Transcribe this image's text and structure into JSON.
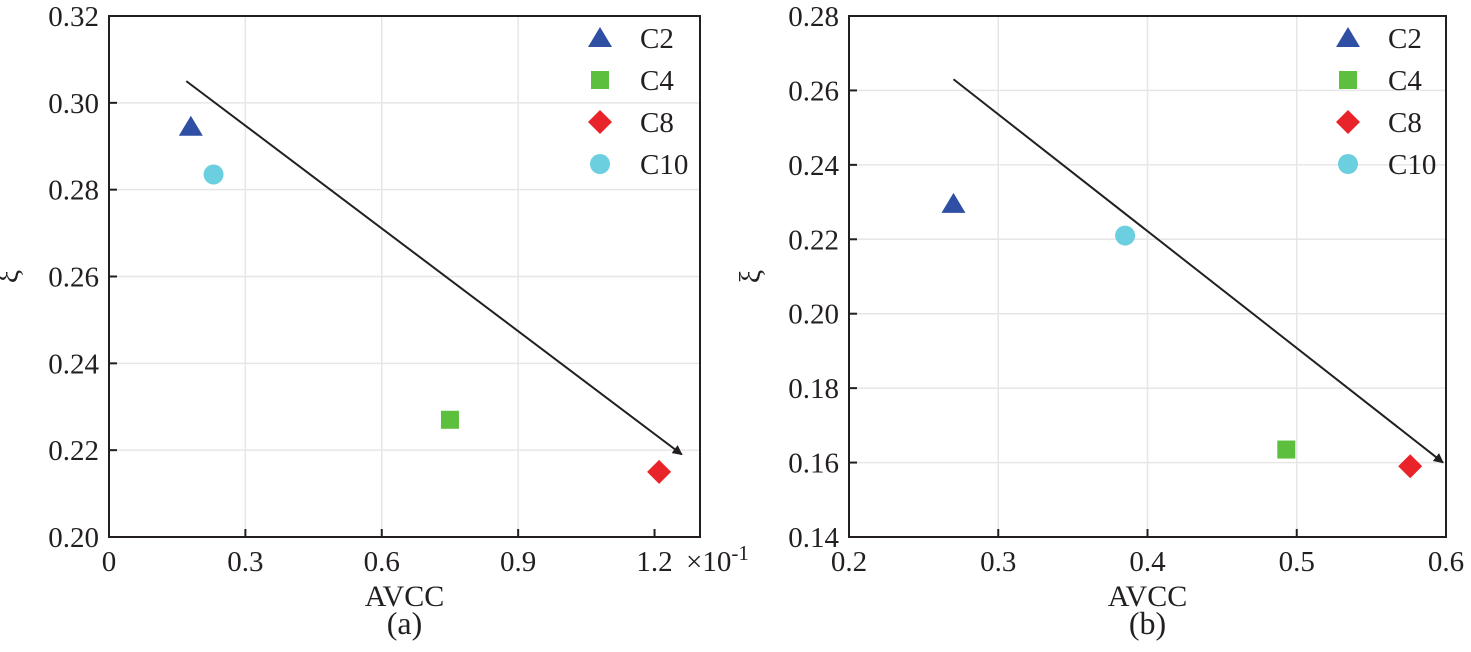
{
  "chart_data": [
    {
      "type": "scatter",
      "panel_label": "(a)",
      "xlabel": "AVCC",
      "ylabel": "ξ",
      "x_exponent_label": "×10",
      "x_exponent_power": "-1",
      "xlim": [
        0,
        1.3
      ],
      "ylim": [
        0.2,
        0.32
      ],
      "xticks": [
        0,
        0.3,
        0.6,
        0.9,
        1.2
      ],
      "xtick_labels": [
        "0",
        "0.3",
        "0.6",
        "0.9",
        "1.2"
      ],
      "yticks": [
        0.2,
        0.22,
        0.24,
        0.26,
        0.28,
        0.3,
        0.32
      ],
      "ytick_labels": [
        "0.20",
        "0.22",
        "0.24",
        "0.26",
        "0.28",
        "0.30",
        "0.32"
      ],
      "grid": true,
      "legend_position": "top-right",
      "series": [
        {
          "name": "C2",
          "marker": "triangle",
          "color": "#2e4fa3",
          "x": 0.18,
          "y": 0.2945
        },
        {
          "name": "C4",
          "marker": "square",
          "color": "#5cbf3e",
          "x": 0.75,
          "y": 0.227
        },
        {
          "name": "C8",
          "marker": "diamond",
          "color": "#e8242a",
          "x": 1.21,
          "y": 0.215
        },
        {
          "name": "C10",
          "marker": "circle",
          "color": "#6ccfdf",
          "x": 0.23,
          "y": 0.2835
        }
      ],
      "trend_arrow": {
        "from": [
          0.17,
          0.305
        ],
        "to": [
          1.26,
          0.219
        ],
        "color": "#231f20"
      }
    },
    {
      "type": "scatter",
      "panel_label": "(b)",
      "xlabel": "AVCC",
      "ylabel": "ξ",
      "xlim": [
        0.2,
        0.6
      ],
      "ylim": [
        0.14,
        0.28
      ],
      "xticks": [
        0.2,
        0.3,
        0.4,
        0.5,
        0.6
      ],
      "xtick_labels": [
        "0.2",
        "0.3",
        "0.4",
        "0.5",
        "0.6"
      ],
      "yticks": [
        0.14,
        0.16,
        0.18,
        0.2,
        0.22,
        0.24,
        0.26,
        0.28
      ],
      "ytick_labels": [
        "0.14",
        "0.16",
        "0.18",
        "0.20",
        "0.22",
        "0.24",
        "0.26",
        "0.28"
      ],
      "grid": true,
      "legend_position": "top-right",
      "series": [
        {
          "name": "C2",
          "marker": "triangle",
          "color": "#2e4fa3",
          "x": 0.27,
          "y": 0.2295
        },
        {
          "name": "C4",
          "marker": "square",
          "color": "#5cbf3e",
          "x": 0.493,
          "y": 0.1635
        },
        {
          "name": "C8",
          "marker": "diamond",
          "color": "#e8242a",
          "x": 0.576,
          "y": 0.159
        },
        {
          "name": "C10",
          "marker": "circle",
          "color": "#6ccfdf",
          "x": 0.385,
          "y": 0.221
        }
      ],
      "trend_arrow": {
        "from": [
          0.27,
          0.263
        ],
        "to": [
          0.598,
          0.16
        ],
        "color": "#231f20"
      }
    }
  ]
}
